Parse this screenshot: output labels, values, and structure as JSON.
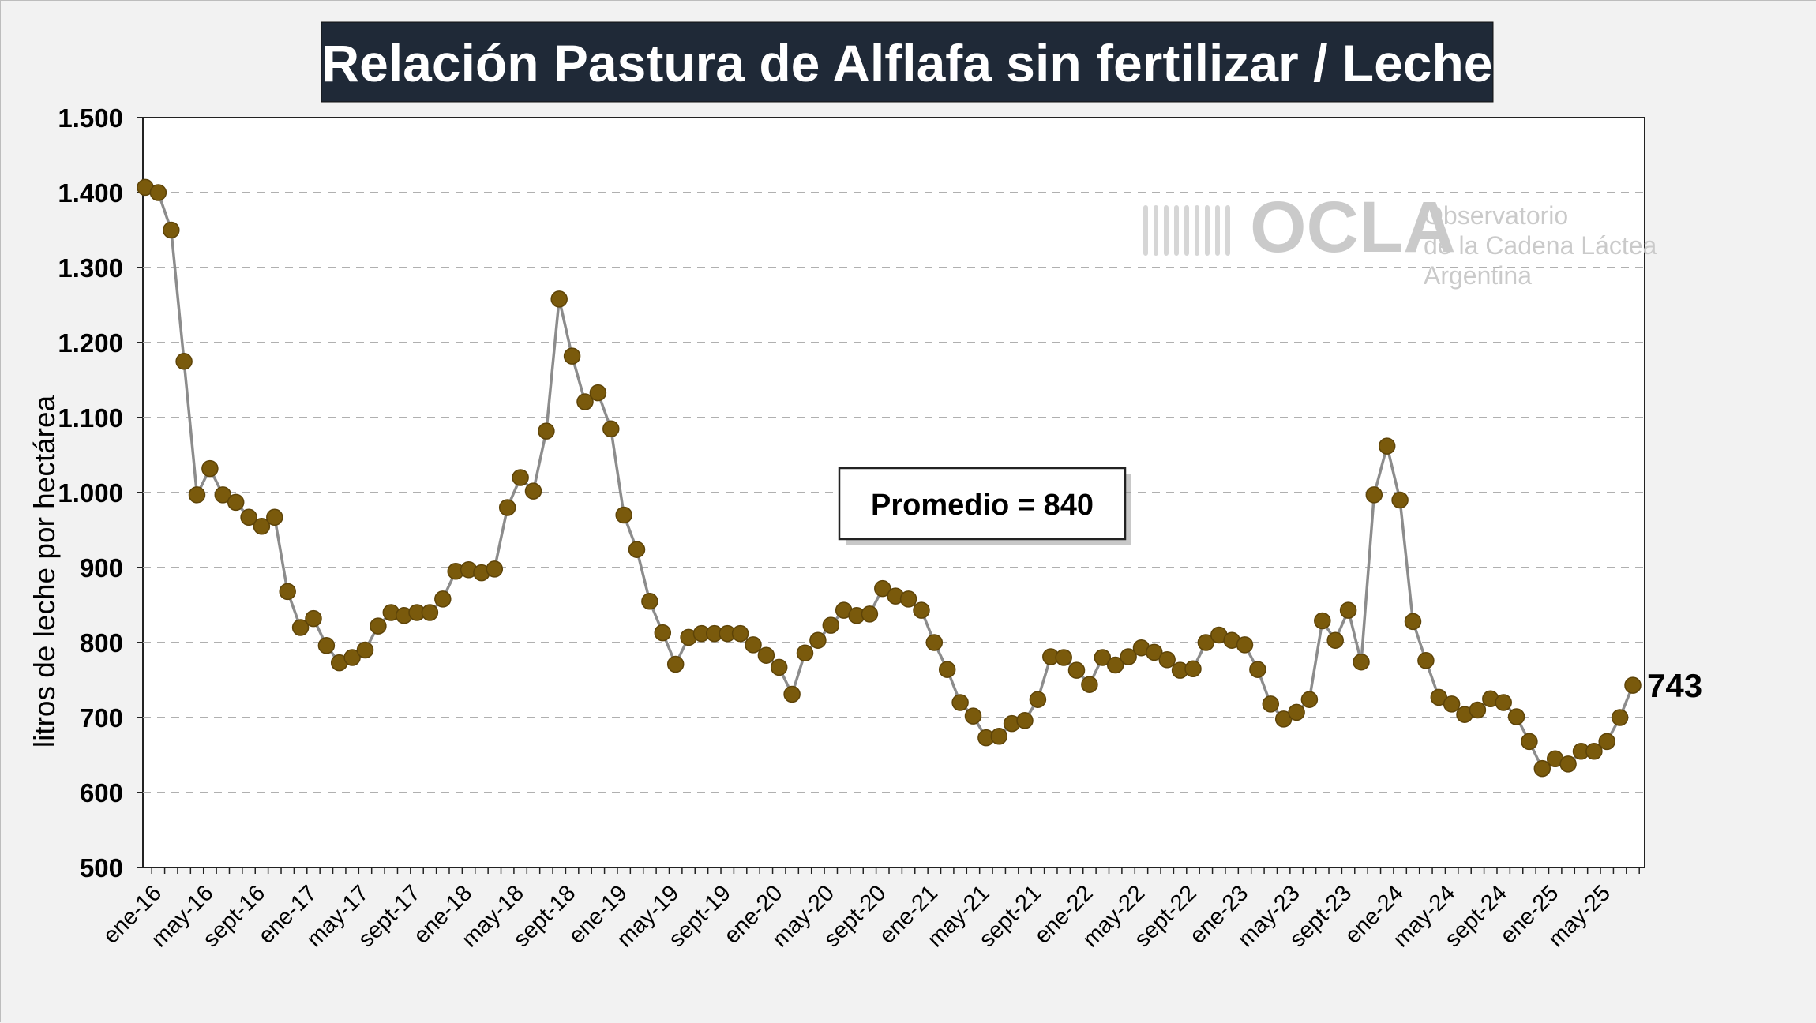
{
  "colors": {
    "background": "#f2f2f2",
    "title_bg": "#1f2937",
    "line": "#8c8c8c",
    "marker": "#7a5a0c",
    "grid": "#b0b0b0",
    "watermark": "#c8c8c8"
  },
  "watermark": {
    "brand": "OCLA",
    "line1": "Observatorio",
    "line2": "de la Cadena Láctea",
    "line3": "Argentina",
    "icon": "milk-wave-logo-icon"
  },
  "annotation": {
    "average_label": "Promedio = 840"
  },
  "last_value_label": "743",
  "chart_data": {
    "type": "line",
    "title": "Relación Pastura de Alflafa sin fertilizar / Leche",
    "ylabel": "litros de leche por hectárea",
    "xlabel": "",
    "ylim": [
      500,
      1500
    ],
    "yticks": [
      "500",
      "600",
      "700",
      "800",
      "900",
      "1.000",
      "1.100",
      "1.200",
      "1.300",
      "1.400",
      "1.500"
    ],
    "ytick_values": [
      500,
      600,
      700,
      800,
      900,
      1000,
      1100,
      1200,
      1300,
      1400,
      1500
    ],
    "grid": true,
    "legend": "none",
    "x_tick_labels": [
      "ene-16",
      "may-16",
      "sept-16",
      "ene-17",
      "may-17",
      "sept-17",
      "ene-18",
      "may-18",
      "sept-18",
      "ene-19",
      "may-19",
      "sept-19",
      "ene-20",
      "may-20",
      "sept-20",
      "ene-21",
      "may-21",
      "sept-21",
      "ene-22",
      "may-22",
      "sept-22",
      "ene-23",
      "may-23",
      "sept-23",
      "ene-24",
      "may-24",
      "sept-24",
      "ene-25",
      "may-25"
    ],
    "x_start": "ene-16",
    "x_end": "ago-25",
    "values": [
      1407,
      1400,
      1350,
      1175,
      997,
      1032,
      997,
      987,
      967,
      955,
      967,
      868,
      820,
      832,
      796,
      773,
      780,
      790,
      822,
      840,
      836,
      840,
      840,
      858,
      895,
      897,
      893,
      898,
      980,
      1020,
      1002,
      1082,
      1258,
      1182,
      1121,
      1133,
      1085,
      970,
      924,
      855,
      813,
      771,
      807,
      812,
      812,
      812,
      812,
      797,
      783,
      767,
      731,
      786,
      803,
      823,
      843,
      836,
      838,
      872,
      862,
      858,
      843,
      800,
      764,
      720,
      702,
      673,
      675,
      692,
      696,
      724,
      781,
      780,
      763,
      744,
      780,
      770,
      781,
      793,
      787,
      777,
      763,
      765,
      800,
      810,
      803,
      797,
      764,
      718,
      698,
      707,
      724,
      829,
      803,
      843,
      774,
      997,
      1062,
      990,
      828,
      776,
      727,
      718,
      704,
      710,
      725,
      720,
      701,
      668,
      632,
      645,
      638,
      655,
      655,
      668,
      700,
      743
    ],
    "average": 840,
    "last_value": 743
  }
}
